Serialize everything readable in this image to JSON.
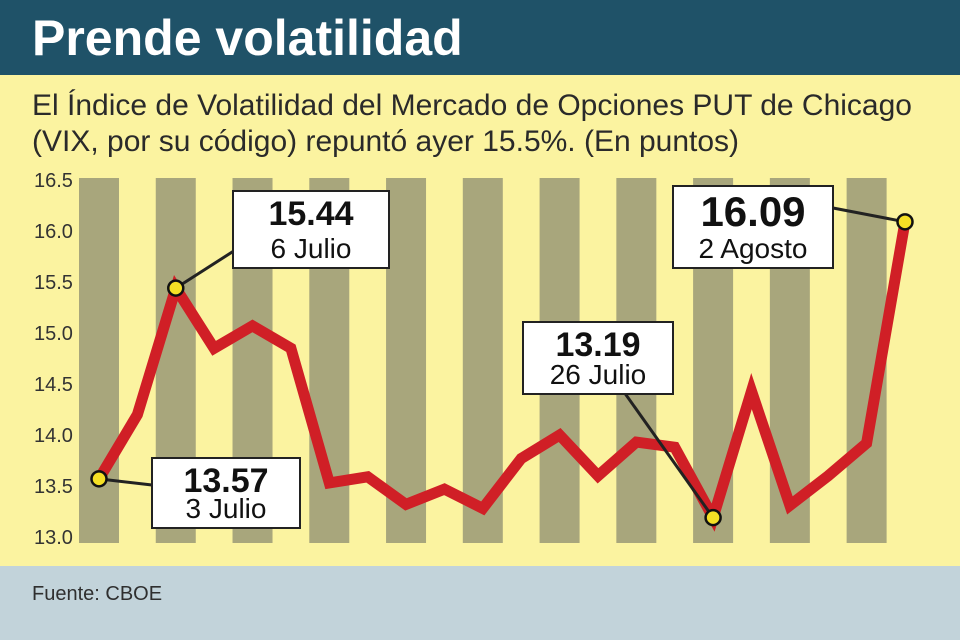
{
  "header": {
    "title": "Prende volatilidad"
  },
  "subtitle": "El Índice de Volatilidad del Mercado de Opciones PUT de Chicago (VIX, por su código) repuntó ayer 15.5%. (En puntos)",
  "footer": {
    "source": "Fuente: CBOE"
  },
  "colors": {
    "header_bg": "#1f5268",
    "plot_bg": "#fbf3a0",
    "stripe": "#a8a67c",
    "line": "#d01f26",
    "marker": "#f5e025",
    "footer_bg": "#c2d3da"
  },
  "chart_data": {
    "type": "line",
    "title": "Prende volatilidad",
    "xlabel": "",
    "ylabel": "",
    "ylim": [
      13.0,
      16.5
    ],
    "yticks": [
      "13.0",
      "13.5",
      "14.0",
      "14.5",
      "15.0",
      "15.5",
      "16.0",
      "16.5"
    ],
    "grid": false,
    "series": [
      {
        "values": [
          13.57,
          14.2,
          15.44,
          14.85,
          15.07,
          14.85,
          13.53,
          13.59,
          13.32,
          13.47,
          13.28,
          13.77,
          14.0,
          13.6,
          13.93,
          13.88,
          13.19,
          14.43,
          13.31,
          13.6,
          13.92,
          16.09
        ]
      }
    ],
    "annotations": [
      {
        "index": 0,
        "value": "13.57",
        "date": "3 Julio"
      },
      {
        "index": 2,
        "value": "15.44",
        "date": "6 Julio"
      },
      {
        "index": 16,
        "value": "13.19",
        "date": "26 Julio"
      },
      {
        "index": 21,
        "value": "16.09",
        "date": "2 Agosto"
      }
    ]
  }
}
